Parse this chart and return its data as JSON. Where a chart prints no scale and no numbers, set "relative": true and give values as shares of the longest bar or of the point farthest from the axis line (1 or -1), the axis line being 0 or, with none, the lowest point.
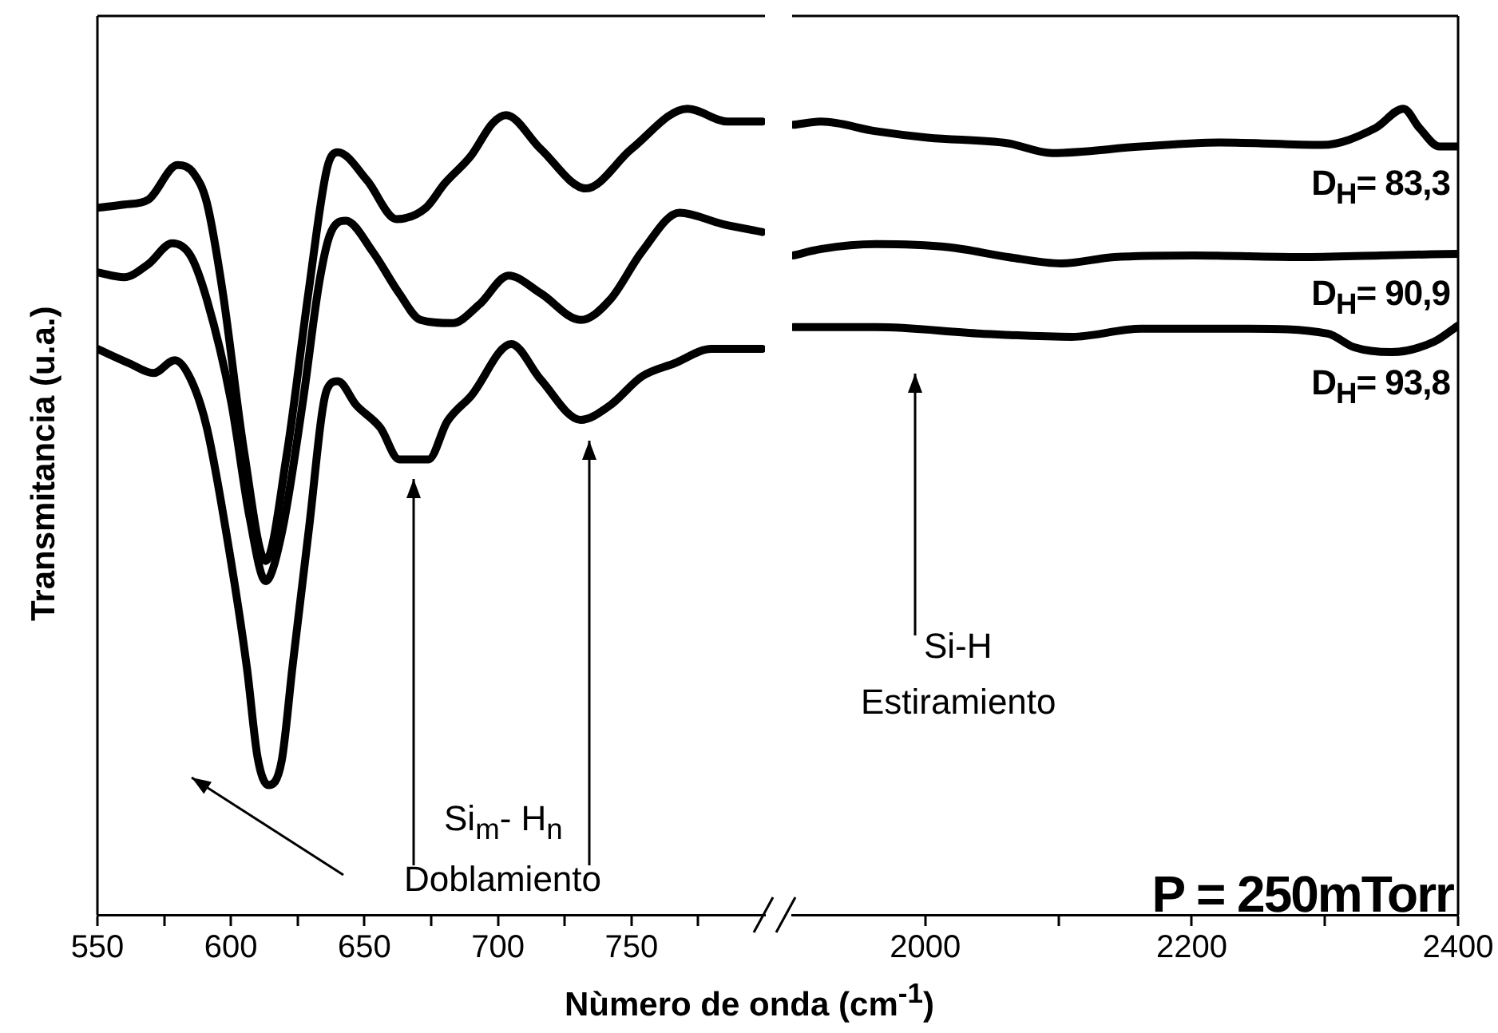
{
  "chart_data": [
    {
      "type": "line",
      "relative": true,
      "ylabel": "Transmitancia (u.a.)",
      "xlabel": "Nùmero de onda (cm$^{-1}$)",
      "xlim": [
        550,
        800
      ],
      "xticks": [
        550,
        {
          "value": 575,
          "label": null
        },
        600,
        {
          "value": 625,
          "label": null
        },
        650,
        {
          "value": 675,
          "label": null
        },
        700,
        {
          "value": 725,
          "label": null
        },
        750,
        {
          "value": 775,
          "label": null
        }
      ],
      "marker": "none",
      "legend": false,
      "annotations": [
        "Si$_{m}$- H$_{n}$",
        "Doblamiento"
      ],
      "series": [
        {
          "color": "#000000",
          "x": [
            550,
            560,
            569,
            580,
            586,
            591,
            597,
            605,
            613,
            621,
            629,
            636,
            640,
            651,
            662,
            673,
            680,
            690,
            698,
            703,
            716,
            733,
            750,
            771,
            786,
            799
          ],
          "values": [
            0.877,
            0.881,
            0.887,
            0.93,
            0.92,
            0.883,
            0.771,
            0.573,
            0.439,
            0.573,
            0.771,
            0.926,
            0.946,
            0.911,
            0.863,
            0.877,
            0.907,
            0.942,
            0.982,
            0.992,
            0.95,
            0.901,
            0.95,
            1.0,
            0.984,
            0.984
          ]
        },
        {
          "color": "#000000",
          "x": [
            550,
            560,
            569,
            578,
            585,
            591,
            600,
            607,
            613,
            619,
            627,
            633,
            637,
            643,
            653,
            663,
            671,
            683,
            693,
            704,
            716,
            731,
            742,
            754,
            768,
            784,
            799
          ],
          "values": [
            0.797,
            0.791,
            0.807,
            0.833,
            0.817,
            0.763,
            0.638,
            0.493,
            0.414,
            0.473,
            0.638,
            0.783,
            0.843,
            0.861,
            0.823,
            0.771,
            0.738,
            0.734,
            0.757,
            0.793,
            0.771,
            0.738,
            0.763,
            0.823,
            0.871,
            0.857,
            0.847
          ]
        },
        {
          "color": "#000000",
          "x": [
            550,
            562,
            571,
            579,
            585,
            591,
            600,
            606,
            610,
            614,
            619,
            623,
            629,
            636,
            640,
            647,
            656,
            663,
            674,
            681,
            690,
            705,
            716,
            731,
            742,
            754,
            766,
            780,
            799
          ],
          "values": [
            0.702,
            0.684,
            0.672,
            0.688,
            0.664,
            0.604,
            0.439,
            0.306,
            0.195,
            0.161,
            0.191,
            0.306,
            0.473,
            0.652,
            0.662,
            0.632,
            0.604,
            0.565,
            0.565,
            0.612,
            0.644,
            0.708,
            0.664,
            0.614,
            0.632,
            0.668,
            0.684,
            0.702,
            0.702
          ]
        }
      ]
    },
    {
      "type": "line",
      "relative": true,
      "xlim": [
        1900,
        2400
      ],
      "xticks": [
        2000,
        {
          "value": 2100,
          "label": null
        },
        2200,
        {
          "value": 2300,
          "label": null
        },
        2400
      ],
      "marker": "none",
      "legend": false,
      "annotations": [
        "Si-H",
        "Estiramiento",
        "P = 250mTorr"
      ],
      "series": [
        {
          "name": "D$_{H}$= 83,3",
          "color": "#000000",
          "x": [
            1901,
            1922,
            1963,
            2002,
            2062,
            2095,
            2162,
            2222,
            2298,
            2338,
            2359,
            2371,
            2386,
            2400
          ],
          "values": [
            0.98,
            0.984,
            0.972,
            0.964,
            0.957,
            0.945,
            0.953,
            0.958,
            0.955,
            0.976,
            1.0,
            0.976,
            0.953,
            0.953
          ]
        },
        {
          "name": "D$_{H}$= 90,9",
          "color": "#000000",
          "x": [
            1901,
            1922,
            1963,
            2018,
            2062,
            2102,
            2142,
            2202,
            2282,
            2342,
            2400
          ],
          "values": [
            0.818,
            0.826,
            0.832,
            0.828,
            0.816,
            0.808,
            0.816,
            0.818,
            0.816,
            0.818,
            0.82
          ]
        },
        {
          "name": "D$_{H}$= 93,8",
          "color": "#000000",
          "x": [
            1901,
            1963,
            2042,
            2110,
            2162,
            2242,
            2302,
            2322,
            2350,
            2382,
            2400
          ],
          "values": [
            0.729,
            0.729,
            0.721,
            0.717,
            0.727,
            0.727,
            0.721,
            0.704,
            0.698,
            0.711,
            0.731
          ]
        }
      ]
    }
  ]
}
